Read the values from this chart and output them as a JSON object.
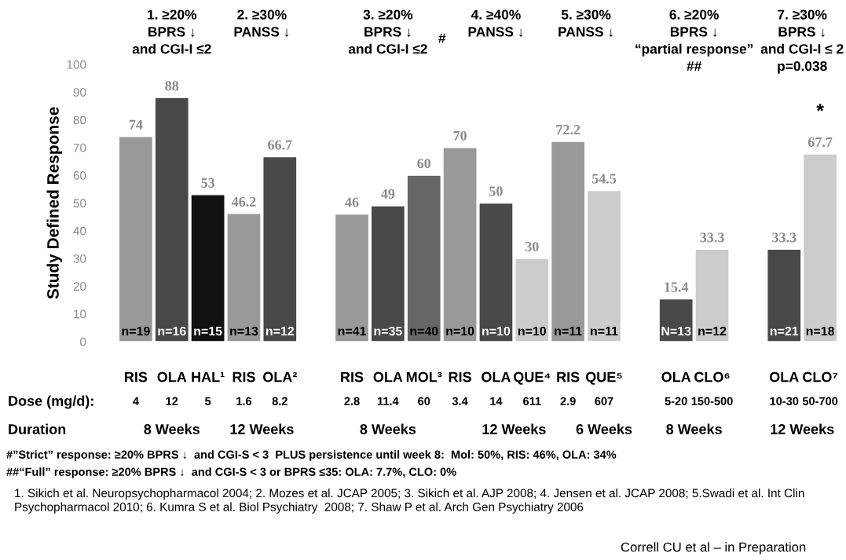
{
  "chart_data": {
    "type": "bar",
    "ylabel": "Study Defined Response",
    "categories": [
      "RIS",
      "OLA",
      "HAL¹",
      "RIS",
      "OLA²",
      null,
      "RIS",
      "OLA",
      "MOL³",
      "RIS",
      "OLA",
      "QUE⁴",
      "RIS",
      "QUE⁵",
      null,
      "OLA",
      "CLO⁶",
      null,
      "OLA",
      "CLO⁷"
    ],
    "values": [
      74,
      88,
      53,
      46.2,
      66.7,
      null,
      46,
      49,
      60,
      70,
      50,
      30,
      72.2,
      54.5,
      null,
      15.4,
      33.3,
      null,
      33.3,
      67.7
    ],
    "colors": [
      "#999999",
      "#484848",
      "#111111",
      "#999999",
      "#484848",
      null,
      "#999999",
      "#484848",
      "#666666",
      "#999999",
      "#484848",
      "#cccccc",
      "#999999",
      "#cccccc",
      null,
      "#484848",
      "#cccccc",
      null,
      "#484848",
      "#cccccc"
    ],
    "data_labels": true,
    "ylim": [
      0,
      100
    ],
    "yticks": [
      0,
      10,
      20,
      30,
      40,
      50,
      60,
      70,
      80,
      90,
      100
    ],
    "annotations": [
      "1. ≥20%\nBPRS ↓\nand CGI-I ≤2",
      "2. ≥30%\nPANSS ↓",
      "3. ≥20%\nBPRS ↓\nand CGI-I ≤2",
      "4. ≥40%\nPANSS ↓",
      "5. ≥30%\nPANSS ↓",
      "6. ≥20%\nBPRS ↓\n“partial response”\n##",
      "7. ≥30%\nBPRS ↓\nand CGI-I ≤ 2\np=0.038",
      "#",
      "*",
      "n=19",
      "n=16",
      "n=15",
      "n=13",
      "n=12",
      "n=41",
      "n=35",
      "n=40",
      "n=10",
      "n=10",
      "n=10",
      "n=11",
      "n=11",
      "N=13",
      "n=12",
      "n=21",
      "n=18",
      "Dose (mg/d):",
      "4",
      "12",
      "5",
      "1.6",
      "8.2",
      "2.8",
      "11.4",
      "60",
      "3.4",
      "14",
      "611",
      "2.9",
      "607",
      "5-20",
      "150-500",
      "10-30",
      "50-700",
      "Duration",
      "8 Weeks",
      "12 Weeks",
      "8 Weeks",
      "12 Weeks",
      "6 Weeks",
      "8 Weeks",
      "12 Weeks",
      "#”Strict” response: ≥20% BPRS ↓  and CGI-S < 3  PLUS persistence until week 8:  Mol: 50%, RIS: 46%, OLA: 34%",
      "##“Full” response: ≥20% BPRS ↓  and CGI-S < 3 or BPRS ≤35: OLA: 7.7%, CLO: 0%",
      "1. Sikich et al. Neuropsychopharmacol 2004; 2. Mozes et al. JCAP 2005; 3. Sikich et al. AJP 2008; 4. Jensen et al. JCAP 2008; 5.Swadi et al. Int Clin Psychopharmacol 2010; 6. Kumra S et al. Biol Psychiatry  2008; 7. Shaw P et al. Arch Gen Psychiatry 2006",
      "Correll CU et al – in Preparation"
    ]
  }
}
